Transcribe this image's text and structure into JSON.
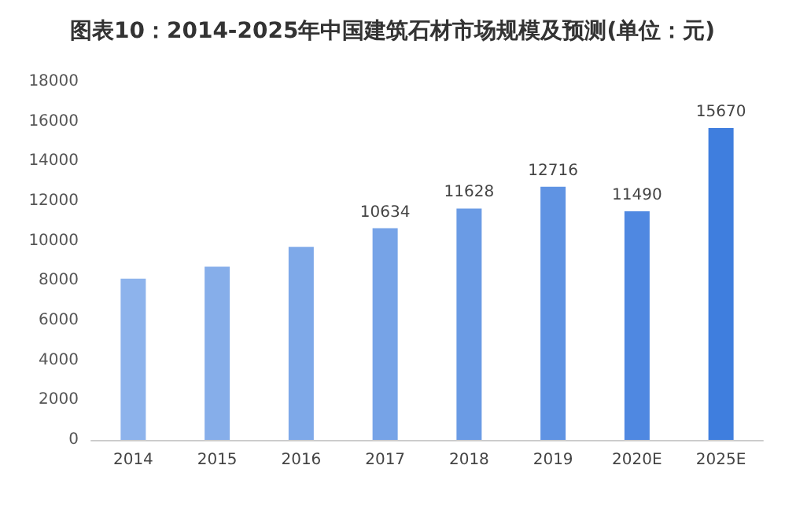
{
  "chart_data": {
    "type": "bar",
    "title": "图表10：2014-2025年中国建筑石材市场规模及预测(单位：元)",
    "categories": [
      "2014",
      "2015",
      "2016",
      "2017",
      "2018",
      "2019",
      "2020E",
      "2025E"
    ],
    "values": [
      8100,
      8700,
      9700,
      10634,
      11628,
      12716,
      11490,
      15670
    ],
    "value_labels": [
      null,
      null,
      null,
      "10634",
      "11628",
      "12716",
      "11490",
      "15670"
    ],
    "colors": [
      "#8db3ec",
      "#86aeea",
      "#7ea9e9",
      "#76a3e7",
      "#6a9be5",
      "#5f93e3",
      "#4f88e1",
      "#3f7ede"
    ],
    "ylim": [
      0,
      18000
    ],
    "yticks": [
      0,
      2000,
      4000,
      6000,
      8000,
      10000,
      12000,
      14000,
      16000,
      18000
    ],
    "grid": false
  }
}
